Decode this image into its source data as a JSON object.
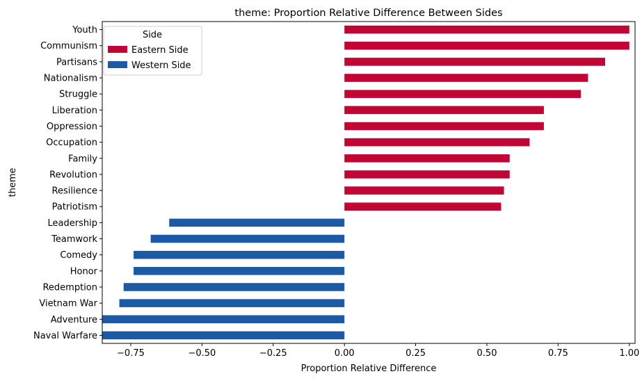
{
  "chart_data": {
    "type": "bar",
    "orientation": "horizontal",
    "title": "theme: Proportion Relative Difference Between Sides",
    "xlabel": "Proportion Relative Difference",
    "ylabel": "theme",
    "xlim": [
      -0.85,
      1.02
    ],
    "xticks": [
      -0.75,
      -0.5,
      -0.25,
      0.0,
      0.25,
      0.5,
      0.75,
      1.0
    ],
    "xtick_labels": [
      "−0.75",
      "−0.50",
      "−0.25",
      "0.00",
      "0.25",
      "0.50",
      "0.75",
      "1.00"
    ],
    "grid": false,
    "legend": {
      "title": "Side",
      "placement": "top-left",
      "entries": [
        {
          "label": "Eastern Side",
          "color": "#c10534"
        },
        {
          "label": "Western Side",
          "color": "#1c5aa6"
        }
      ]
    },
    "categories": [
      "Youth",
      "Communism",
      "Partisans",
      "Nationalism",
      "Struggle",
      "Liberation",
      "Oppression",
      "Occupation",
      "Family",
      "Revolution",
      "Resilience",
      "Patriotism",
      "Leadership",
      "Teamwork",
      "Comedy",
      "Honor",
      "Redemption",
      "Vietnam War",
      "Adventure",
      "Naval Warfare"
    ],
    "values": [
      1.0,
      1.0,
      0.915,
      0.855,
      0.83,
      0.7,
      0.7,
      0.65,
      0.58,
      0.58,
      0.56,
      0.55,
      -0.615,
      -0.68,
      -0.74,
      -0.74,
      -0.775,
      -0.79,
      -0.85,
      -0.85
    ],
    "sides": [
      "Eastern Side",
      "Eastern Side",
      "Eastern Side",
      "Eastern Side",
      "Eastern Side",
      "Eastern Side",
      "Eastern Side",
      "Eastern Side",
      "Eastern Side",
      "Eastern Side",
      "Eastern Side",
      "Eastern Side",
      "Western Side",
      "Western Side",
      "Western Side",
      "Western Side",
      "Western Side",
      "Western Side",
      "Western Side",
      "Western Side"
    ]
  }
}
